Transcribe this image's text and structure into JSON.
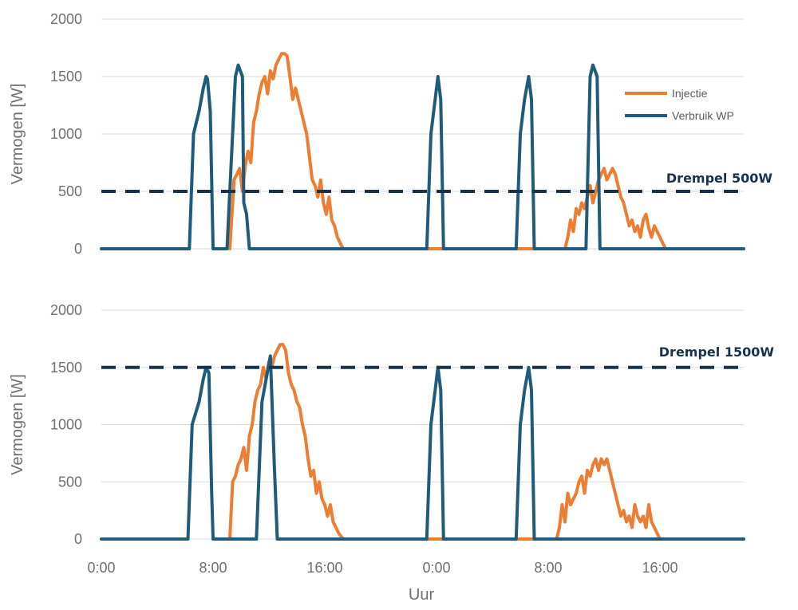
{
  "colors": {
    "injectie": "#ed7d31",
    "verbruik": "#1f5b7a",
    "threshold": "#17324a"
  },
  "chart_data": [
    {
      "type": "line",
      "xlabel": "",
      "ylabel": "Vermogen [W]",
      "ylim": [
        0,
        2000
      ],
      "yticks": [
        0,
        500,
        1000,
        1500,
        2000
      ],
      "xlim": [
        0,
        46
      ],
      "xticks": [
        0,
        8,
        16,
        24,
        32,
        40
      ],
      "xticklabels": [],
      "grid": true,
      "legend": "top-right",
      "threshold": {
        "label": "Drempel 500W",
        "value": 500
      },
      "series": [
        {
          "name": "Injectie",
          "color_key": "injectie",
          "x": [
            9.2,
            9.5,
            9.7,
            9.9,
            10.1,
            10.3,
            10.5,
            10.7,
            10.9,
            11.1,
            11.3,
            11.5,
            11.7,
            11.9,
            12.1,
            12.3,
            12.5,
            12.7,
            12.9,
            13.1,
            13.3,
            13.5,
            13.7,
            13.9,
            14.1,
            14.3,
            14.5,
            14.7,
            14.9,
            15.1,
            15.3,
            15.5,
            15.7,
            15.9,
            16.1,
            16.3,
            16.5,
            16.7,
            16.9,
            17.1,
            17.3,
            33.2,
            33.4,
            33.6,
            33.8,
            34.0,
            34.2,
            34.4,
            34.6,
            34.8,
            35.0,
            35.2,
            35.4,
            35.6,
            35.8,
            36.0,
            36.2,
            36.4,
            36.6,
            36.8,
            37.0,
            37.2,
            37.4,
            37.6,
            37.8,
            38.0,
            38.2,
            38.4,
            38.6,
            38.8,
            39.0,
            39.2,
            39.4,
            39.6,
            39.8,
            40.0,
            40.2,
            40.4,
            40.6
          ],
          "y": [
            0,
            600,
            650,
            700,
            500,
            720,
            850,
            750,
            1100,
            1200,
            1350,
            1450,
            1500,
            1350,
            1550,
            1480,
            1600,
            1650,
            1700,
            1700,
            1680,
            1500,
            1300,
            1400,
            1300,
            1200,
            1100,
            1000,
            800,
            600,
            550,
            450,
            600,
            400,
            300,
            450,
            250,
            200,
            100,
            50,
            0,
            0,
            100,
            250,
            150,
            350,
            300,
            400,
            350,
            450,
            550,
            400,
            500,
            600,
            650,
            700,
            600,
            650,
            700,
            650,
            550,
            450,
            400,
            300,
            200,
            250,
            150,
            200,
            100,
            250,
            300,
            180,
            100,
            200,
            150,
            100,
            50,
            0,
            0
          ],
          "points": [],
          "bars": []
        },
        {
          "name": "Verbruik WP",
          "color_key": "verbruik",
          "x": [
            0,
            6.3,
            6.6,
            7.0,
            7.3,
            7.5,
            7.6,
            7.8,
            8.0,
            9.0,
            9.6,
            9.8,
            10.1,
            10.2,
            10.4,
            10.6,
            23.0,
            23.3,
            23.6,
            23.9,
            24.1,
            24.3,
            24.5,
            29.7,
            30.0,
            30.3,
            30.6,
            30.8,
            31.0,
            31.2,
            34.7,
            35.0,
            35.2,
            35.5,
            35.7,
            46
          ],
          "y": [
            0,
            0,
            1000,
            1200,
            1400,
            1500,
            1480,
            1200,
            0,
            0,
            1500,
            1600,
            1500,
            400,
            300,
            0,
            0,
            0,
            1000,
            1300,
            1500,
            1300,
            0,
            0,
            1000,
            1300,
            1500,
            1300,
            0,
            0,
            0,
            1500,
            1600,
            1500,
            0,
            0
          ],
          "points": [],
          "bars": []
        }
      ]
    },
    {
      "type": "line",
      "xlabel": "Uur",
      "ylabel": "Vermogen [W]",
      "ylim": [
        0,
        2000
      ],
      "yticks": [
        0,
        500,
        1000,
        1500,
        2000
      ],
      "xlim": [
        0,
        46
      ],
      "xticks": [
        0,
        8,
        16,
        24,
        32,
        40
      ],
      "xticklabels": [
        "0:00",
        "8:00",
        "16:00",
        "0:00",
        "8:00",
        "16:00"
      ],
      "grid": true,
      "legend": "none",
      "threshold": {
        "label": "Drempel 1500W",
        "value": 1500
      },
      "series": [
        {
          "name": "Injectie",
          "color_key": "injectie",
          "x": [
            9.2,
            9.4,
            9.6,
            9.8,
            10.0,
            10.2,
            10.4,
            10.6,
            10.8,
            11.0,
            11.2,
            11.4,
            11.6,
            11.8,
            12.0,
            12.2,
            12.4,
            12.6,
            12.8,
            13.0,
            13.2,
            13.4,
            13.6,
            13.8,
            14.0,
            14.2,
            14.4,
            14.6,
            14.8,
            15.0,
            15.2,
            15.4,
            15.6,
            15.8,
            16.0,
            16.2,
            16.4,
            16.6,
            16.8,
            17.0,
            17.3,
            32.6,
            32.8,
            33.0,
            33.2,
            33.4,
            33.6,
            33.8,
            34.0,
            34.2,
            34.4,
            34.6,
            34.8,
            35.0,
            35.2,
            35.4,
            35.6,
            35.8,
            36.0,
            36.2,
            36.4,
            36.6,
            36.8,
            37.0,
            37.2,
            37.4,
            37.6,
            37.8,
            38.0,
            38.2,
            38.4,
            38.6,
            38.8,
            39.0,
            39.2,
            39.4,
            39.6,
            39.8,
            40.0
          ],
          "y": [
            0,
            500,
            550,
            650,
            700,
            800,
            600,
            900,
            1000,
            1200,
            1300,
            1350,
            1500,
            1400,
            1550,
            1500,
            1600,
            1650,
            1700,
            1700,
            1650,
            1450,
            1350,
            1300,
            1200,
            1150,
            1000,
            900,
            700,
            550,
            600,
            400,
            500,
            350,
            300,
            200,
            300,
            150,
            100,
            50,
            0,
            0,
            100,
            300,
            150,
            400,
            300,
            350,
            400,
            500,
            550,
            400,
            600,
            550,
            650,
            700,
            600,
            700,
            650,
            700,
            600,
            500,
            400,
            300,
            200,
            250,
            150,
            200,
            100,
            300,
            200,
            150,
            200,
            100,
            300,
            150,
            100,
            50,
            0
          ],
          "points": [],
          "bars": []
        },
        {
          "name": "Verbruik WP",
          "color_key": "verbruik",
          "x": [
            0,
            6.2,
            6.5,
            7.0,
            7.3,
            7.5,
            7.7,
            7.9,
            8.0,
            11.1,
            11.5,
            12.1,
            12.4,
            12.6,
            23.0,
            23.3,
            23.6,
            23.9,
            24.1,
            24.3,
            24.5,
            29.7,
            30.0,
            30.3,
            30.6,
            30.8,
            31.0,
            31.2,
            46
          ],
          "y": [
            0,
            0,
            1000,
            1200,
            1400,
            1500,
            1450,
            400,
            0,
            0,
            1200,
            1600,
            600,
            0,
            0,
            0,
            1000,
            1300,
            1500,
            1300,
            0,
            0,
            1000,
            1300,
            1500,
            1300,
            0,
            0,
            0
          ],
          "points": [],
          "bars": []
        }
      ]
    }
  ]
}
